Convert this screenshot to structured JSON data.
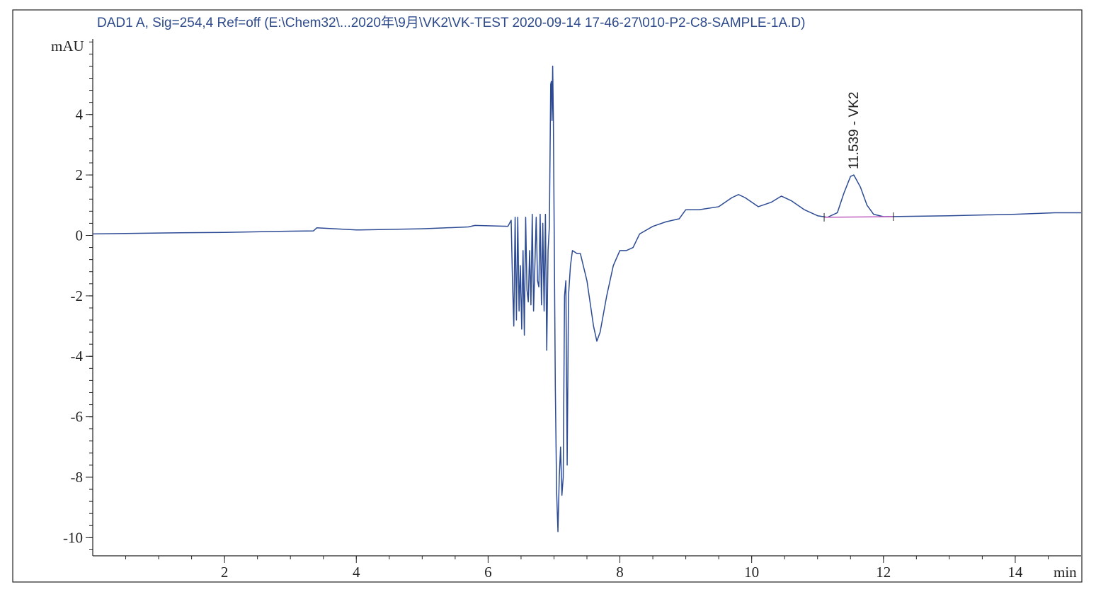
{
  "chart_data": {
    "type": "line",
    "title": "DAD1 A, Sig=254,4 Ref=off (E:\\Chem32\\...2020年\\9月\\VK2\\VK-TEST 2020-09-14 17-46-27\\010-P2-C8-SAMPLE-1A.D)",
    "y_label": "mAU",
    "x_label": "min",
    "xlim": [
      0,
      15
    ],
    "ylim": [
      -10.6,
      6.5
    ],
    "xticks": [
      2,
      4,
      6,
      8,
      10,
      12,
      14
    ],
    "yticks": [
      -10,
      -8,
      -6,
      -4,
      -2,
      0,
      2,
      4
    ],
    "xminorticks": [
      0.5,
      1,
      1.5,
      2,
      2.5,
      3,
      3.5,
      4,
      4.5,
      5,
      5.5,
      6,
      6.5,
      7,
      7.5,
      8,
      8.5,
      9,
      9.5,
      10,
      10.5,
      11,
      11.5,
      12,
      12.5,
      13,
      13.5,
      14,
      14.5
    ],
    "yminorticks": [
      -10.4,
      -10,
      -9.6,
      -9.2,
      -8.8,
      -8.4,
      -8,
      -7.6,
      -7.2,
      -6.8,
      -6.4,
      -6,
      -5.6,
      -5.2,
      -4.8,
      -4.4,
      -4,
      -3.6,
      -3.2,
      -2.8,
      -2.4,
      -2,
      -1.6,
      -1.2,
      -0.8,
      -0.4,
      0,
      0.4,
      0.8,
      1.2,
      1.6,
      2,
      2.4,
      2.8,
      3.2,
      3.6,
      4,
      4.4,
      4.8,
      5.2,
      5.6,
      6,
      6.4
    ],
    "series": [
      {
        "color": "#2c4b94",
        "x": [
          0,
          1,
          2,
          3,
          3.35,
          3.4,
          4,
          5,
          5.7,
          5.8,
          6.3,
          6.35,
          6.37,
          6.39,
          6.41,
          6.43,
          6.45,
          6.47,
          6.49,
          6.51,
          6.53,
          6.55,
          6.57,
          6.59,
          6.61,
          6.63,
          6.65,
          6.67,
          6.69,
          6.71,
          6.73,
          6.75,
          6.77,
          6.79,
          6.81,
          6.83,
          6.85,
          6.87,
          6.89,
          6.91,
          6.93,
          6.95,
          6.96,
          6.97,
          6.98,
          6.99,
          7.0,
          7.02,
          7.04,
          7.06,
          7.08,
          7.1,
          7.12,
          7.14,
          7.16,
          7.18,
          7.2,
          7.22,
          7.25,
          7.28,
          7.35,
          7.4,
          7.5,
          7.6,
          7.65,
          7.7,
          7.8,
          7.9,
          8.0,
          8.1,
          8.2,
          8.3,
          8.5,
          8.7,
          8.9,
          9.0,
          9.2,
          9.5,
          9.7,
          9.8,
          9.9,
          10.1,
          10.3,
          10.45,
          10.6,
          10.8,
          11.0,
          11.15,
          11.3,
          11.4,
          11.5,
          11.55,
          11.65,
          11.75,
          11.85,
          12.0,
          13.0,
          14.0,
          14.6,
          15.0
        ],
        "values": [
          0.05,
          0.08,
          0.1,
          0.14,
          0.15,
          0.25,
          0.18,
          0.22,
          0.28,
          0.33,
          0.3,
          0.5,
          -1.5,
          -3.0,
          0.6,
          -2.8,
          0.6,
          -2.5,
          -1.0,
          -3.1,
          -0.5,
          -3.3,
          0.6,
          -1.8,
          -2.2,
          -0.5,
          -2.3,
          0.7,
          -2.5,
          -1.0,
          0.6,
          -1.5,
          -1.7,
          0.7,
          -2.3,
          0.4,
          -2.5,
          0.7,
          -3.8,
          -0.5,
          0.3,
          5.0,
          5.1,
          3.8,
          5.6,
          4.0,
          1.0,
          -5.0,
          -8.5,
          -9.8,
          -8.0,
          -7.0,
          -8.6,
          -8.0,
          -2.0,
          -1.5,
          -7.6,
          -2.0,
          -1.0,
          -0.5,
          -0.6,
          -0.6,
          -1.5,
          -3.0,
          -3.5,
          -3.2,
          -2.0,
          -1.0,
          -0.5,
          -0.5,
          -0.4,
          0.05,
          0.3,
          0.45,
          0.55,
          0.85,
          0.85,
          0.95,
          1.25,
          1.35,
          1.25,
          0.95,
          1.1,
          1.3,
          1.15,
          0.85,
          0.65,
          0.6,
          0.75,
          1.4,
          1.95,
          2.0,
          1.6,
          1.0,
          0.7,
          0.62,
          0.65,
          0.7,
          0.75,
          0.75
        ]
      }
    ],
    "integration_baseline": {
      "color": "#c060c0",
      "x": [
        11.1,
        12.15
      ],
      "values": [
        0.6,
        0.62
      ]
    },
    "annotations": [
      {
        "text": "11.539 - VK2",
        "x": 11.539,
        "y": 2.0
      }
    ]
  }
}
